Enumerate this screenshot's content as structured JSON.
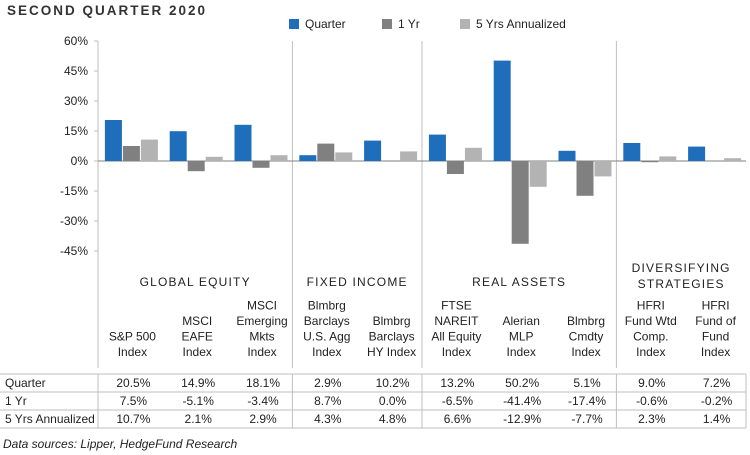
{
  "title": "SECOND QUARTER 2020",
  "source": "Data sources: Lipper, HedgeFund Research",
  "colors": {
    "quarter": "#1f6ebb",
    "one_yr": "#808080",
    "five_yr": "#b3b3b3",
    "grid": "#bfbfbf",
    "text": "#222222"
  },
  "groups": [
    {
      "label": [
        "GLOBAL EQUITY"
      ],
      "count": 3
    },
    {
      "label": [
        "FIXED INCOME"
      ],
      "count": 2
    },
    {
      "label": [
        "REAL ASSETS"
      ],
      "count": 3
    },
    {
      "label": [
        "DIVERSIFYING",
        "STRATEGIES"
      ],
      "count": 2
    }
  ],
  "table": {
    "rows": [
      {
        "label": "Quarter",
        "values": [
          "20.5%",
          "14.9%",
          "18.1%",
          "2.9%",
          "10.2%",
          "13.2%",
          "50.2%",
          "5.1%",
          "9.0%",
          "7.2%"
        ]
      },
      {
        "label": "1 Yr",
        "values": [
          "7.5%",
          "-5.1%",
          "-3.4%",
          "8.7%",
          "0.0%",
          "-6.5%",
          "-41.4%",
          "-17.4%",
          "-0.6%",
          "-0.2%"
        ]
      },
      {
        "label": "5 Yrs Annualized",
        "values": [
          "10.7%",
          "2.1%",
          "2.9%",
          "4.3%",
          "4.8%",
          "6.6%",
          "-12.9%",
          "-7.7%",
          "2.3%",
          "1.4%"
        ]
      }
    ]
  },
  "chart_data": {
    "type": "bar",
    "title": "SECOND QUARTER 2020",
    "categories": [
      [
        "S&P 500",
        "Index"
      ],
      [
        "MSCI",
        "EAFE",
        "Index"
      ],
      [
        "MSCI",
        "Emerging",
        "Mkts",
        "Index"
      ],
      [
        "Blmbrg",
        "Barclays",
        "U.S. Agg",
        "Index"
      ],
      [
        "Blmbrg",
        "Barclays",
        "HY Index"
      ],
      [
        "FTSE",
        "NAREIT",
        "All Equity",
        "Index"
      ],
      [
        "Alerian",
        "MLP",
        "Index"
      ],
      [
        "Blmbrg",
        "Cmdty",
        "Index"
      ],
      [
        "HFRI",
        "Fund Wtd",
        "Comp.",
        "Index"
      ],
      [
        "HFRI",
        "Fund of",
        "Fund",
        "Index"
      ]
    ],
    "series": [
      {
        "name": "Quarter",
        "values": [
          20.5,
          14.9,
          18.1,
          2.9,
          10.2,
          13.2,
          50.2,
          5.1,
          9.0,
          7.2
        ]
      },
      {
        "name": "1 Yr",
        "values": [
          7.5,
          -5.1,
          -3.4,
          8.7,
          0.0,
          -6.5,
          -41.4,
          -17.4,
          -0.6,
          -0.2
        ]
      },
      {
        "name": "5 Yrs Annualized",
        "values": [
          10.7,
          2.1,
          2.9,
          4.3,
          4.8,
          6.6,
          -12.9,
          -7.7,
          2.3,
          1.4
        ]
      }
    ],
    "ylim": [
      -60,
      60
    ],
    "yticks": [
      60,
      45,
      30,
      15,
      0,
      -15,
      -30,
      -45
    ],
    "ytick_labels": [
      "60%",
      "45%",
      "30%",
      "15%",
      "0%",
      "-15%",
      "-30%",
      "-45%"
    ],
    "legend_position": "top",
    "grid": false
  }
}
